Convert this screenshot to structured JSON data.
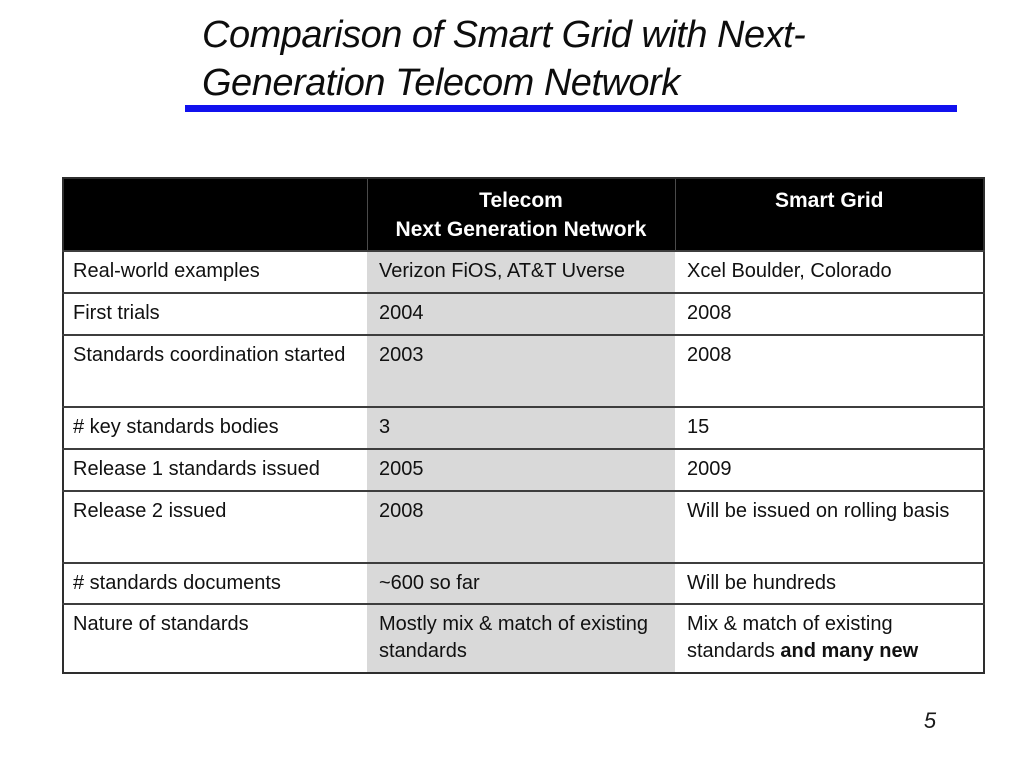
{
  "slide": {
    "title_line1": "Comparison of Smart Grid with Next-",
    "title_line2": "Generation Telecom Network",
    "page_number": "5"
  },
  "colors": {
    "accent_rule_blue": "#1111ee",
    "header_bg": "#000000",
    "header_text": "#ffffff",
    "telecom_column_bg": "#d9d9d9",
    "border": "#3d3d3d"
  },
  "table": {
    "header": {
      "col1": "",
      "col2_line1": "Telecom",
      "col2_line2": "Next Generation Network",
      "col3": "Smart Grid"
    },
    "rows": [
      {
        "label": "Real-world examples",
        "telecom": "Verizon FiOS, AT&T Uverse",
        "smartgrid": "Xcel Boulder, Colorado"
      },
      {
        "label": "First trials",
        "telecom": "2004",
        "smartgrid": "2008"
      },
      {
        "label": "Standards coordination started",
        "telecom": "2003",
        "smartgrid": "2008"
      },
      {
        "label": "# key standards bodies",
        "telecom": "3",
        "smartgrid": "15"
      },
      {
        "label": "Release 1 standards issued",
        "telecom": "2005",
        "smartgrid": "2009"
      },
      {
        "label": "Release 2 issued",
        "telecom": "2008",
        "smartgrid": "Will be issued on rolling basis"
      },
      {
        "label": "# standards documents",
        "telecom": "~600 so far",
        "smartgrid": "Will be hundreds"
      },
      {
        "label": "Nature of standards",
        "telecom": "Mostly mix & match of existing standards",
        "smartgrid": "Mix & match of existing standards ",
        "smartgrid_bold": "and many new"
      }
    ]
  }
}
